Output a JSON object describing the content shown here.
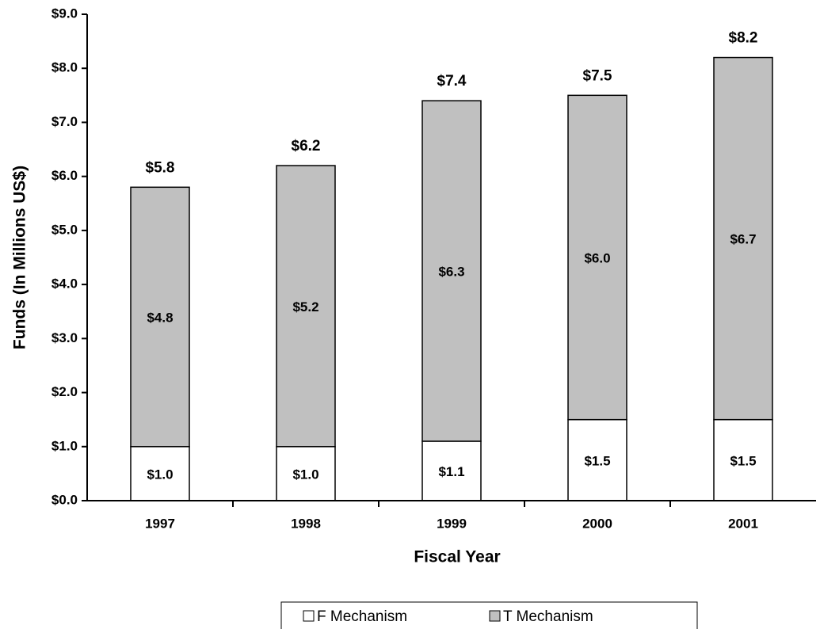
{
  "chart_data": {
    "type": "stacked_bar",
    "x_label": "Fiscal Year",
    "y_label": "Funds (In Millions US$)",
    "categories": [
      "1997",
      "1998",
      "1999",
      "2000",
      "2001"
    ],
    "series": [
      {
        "name": "F Mechanism",
        "color": "#ffffff",
        "values": [
          1.0,
          1.0,
          1.1,
          1.5,
          1.5
        ],
        "value_labels": [
          "$1.0",
          "$1.0",
          "$1.1",
          "$1.5",
          "$1.5"
        ]
      },
      {
        "name": "T Mechanism",
        "color": "#c0c0c0",
        "values": [
          4.8,
          5.2,
          6.3,
          6.0,
          6.7
        ],
        "value_labels": [
          "$4.8",
          "$5.2",
          "$6.3",
          "$6.0",
          "$6.7"
        ]
      }
    ],
    "totals": [
      5.8,
      6.2,
      7.4,
      7.5,
      8.2
    ],
    "total_labels": [
      "$5.8",
      "$6.2",
      "$7.4",
      "$7.5",
      "$8.2"
    ],
    "ylim": [
      0,
      9
    ],
    "yticks": [
      {
        "value": 0,
        "label": "$0.0"
      },
      {
        "value": 1,
        "label": "$1.0"
      },
      {
        "value": 2,
        "label": "$2.0"
      },
      {
        "value": 3,
        "label": "$3.0"
      },
      {
        "value": 4,
        "label": "$4.0"
      },
      {
        "value": 5,
        "label": "$5.0"
      },
      {
        "value": 6,
        "label": "$6.0"
      },
      {
        "value": 7,
        "label": "$7.0"
      },
      {
        "value": 8,
        "label": "$8.0"
      },
      {
        "value": 9,
        "label": "$9.0"
      }
    ],
    "grid": false,
    "legend": "bottom"
  }
}
